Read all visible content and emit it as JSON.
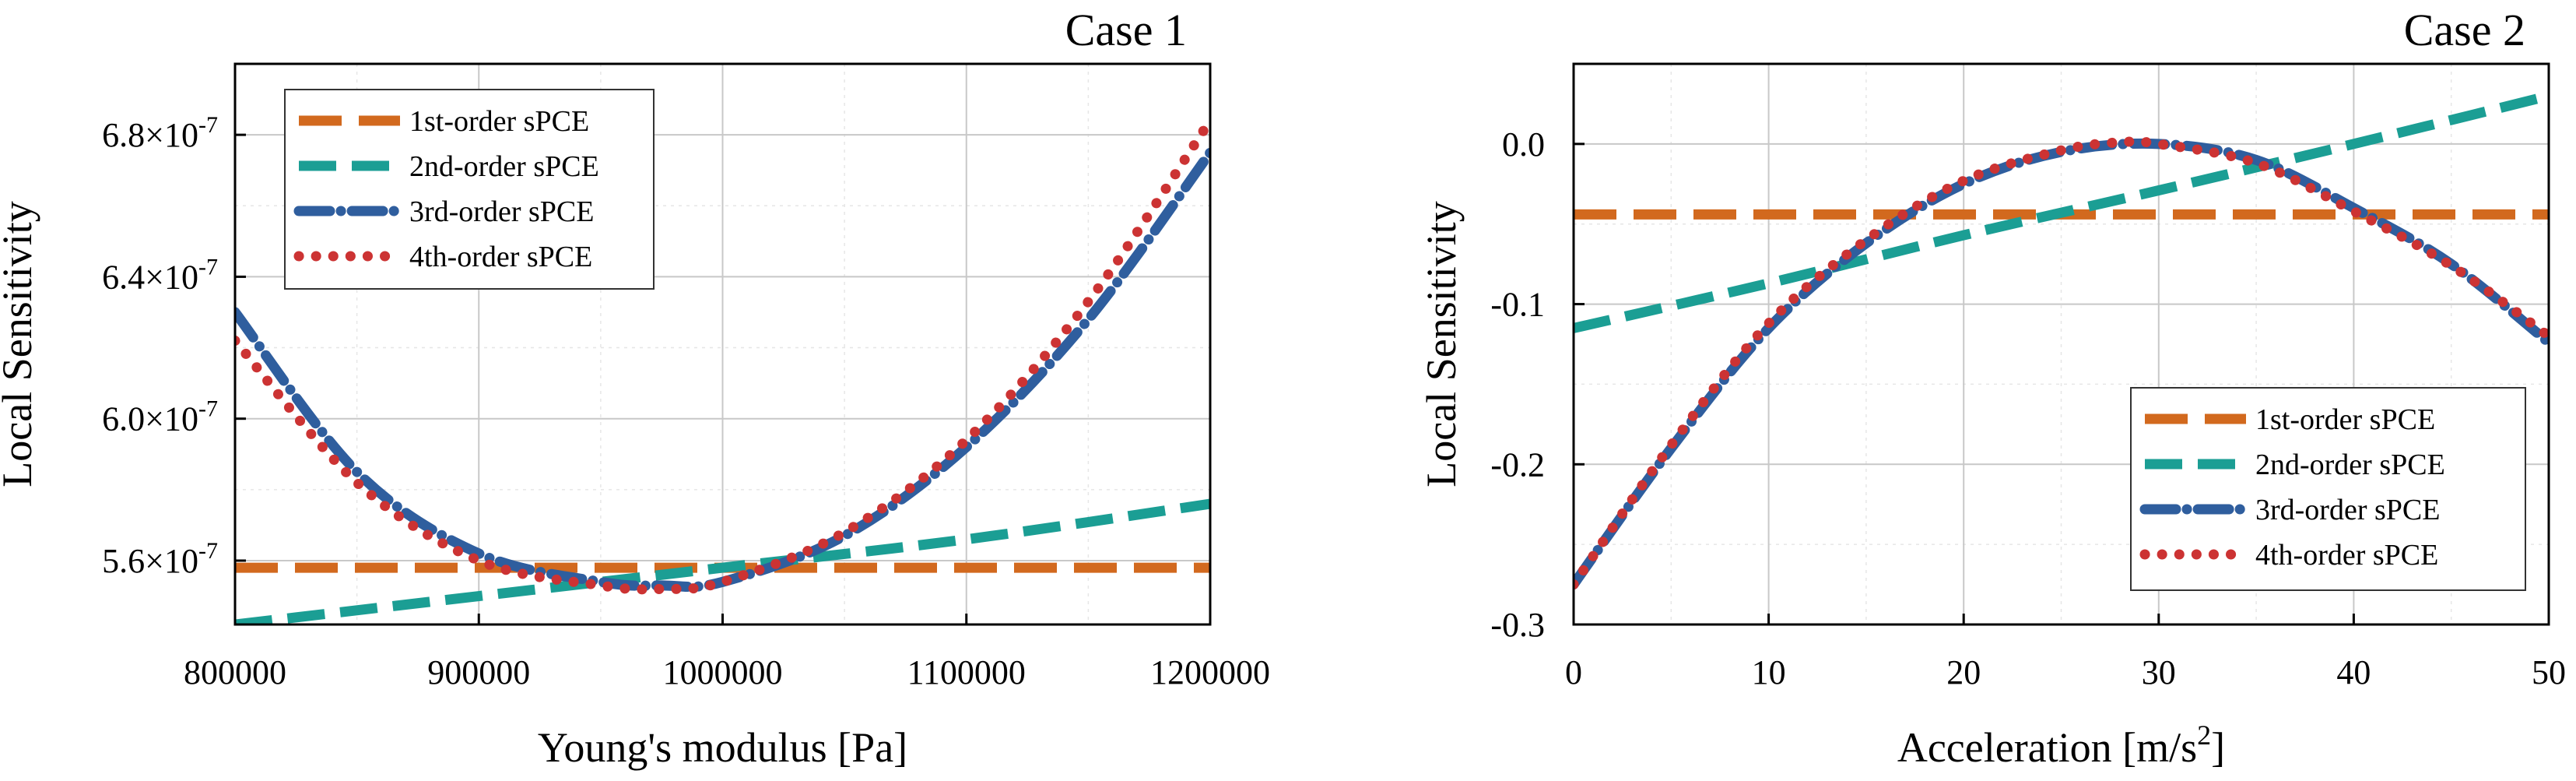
{
  "chart_data": [
    {
      "type": "line",
      "title": "Case 1",
      "xlabel": "Young's modulus [Pa]",
      "ylabel": "Local Sensitivity",
      "xlim": [
        800000,
        1200000
      ],
      "ylim": [
        5.42e-07,
        7e-07
      ],
      "xticks": [
        800000,
        900000,
        1000000,
        1100000,
        1200000
      ],
      "xtick_labels": [
        "800000",
        "900000",
        "1000000",
        "1100000",
        "1200000"
      ],
      "yticks": [
        5.6e-07,
        6e-07,
        6.4e-07,
        6.8e-07
      ],
      "ytick_labels": [
        "5.6×10",
        "6.0×10",
        "6.4×10",
        "6.8×10"
      ],
      "ytick_exponent": "-7",
      "grid": true,
      "legend_position": "top-left",
      "series": [
        {
          "name": "1st-order sPCE",
          "color": "#D2691E",
          "style": "dash",
          "x": [
            800000,
            1200000
          ],
          "y": [
            5.58e-07,
            5.58e-07
          ]
        },
        {
          "name": "2nd-order sPCE",
          "color": "#1B9E94",
          "style": "longdash",
          "x": [
            800000,
            900000,
            1000000,
            1100000,
            1200000
          ],
          "y": [
            5.42e-07,
            5.5e-07,
            5.58e-07,
            5.66e-07,
            5.76e-07
          ]
        },
        {
          "name": "3rd-order sPCE",
          "color": "#2F5E9E",
          "style": "dashdot",
          "x": [
            800000,
            850000,
            900000,
            950000,
            975000,
            1000000,
            1050000,
            1100000,
            1150000,
            1200000
          ],
          "y": [
            6.3e-07,
            5.85e-07,
            5.62e-07,
            5.54e-07,
            5.53e-07,
            5.54e-07,
            5.67e-07,
            5.92e-07,
            6.28e-07,
            6.75e-07
          ]
        },
        {
          "name": "4th-order sPCE",
          "color": "#CC3333",
          "style": "dot",
          "x": [
            800000,
            850000,
            900000,
            950000,
            975000,
            1000000,
            1050000,
            1100000,
            1150000,
            1200000
          ],
          "y": [
            6.22e-07,
            5.82e-07,
            5.6e-07,
            5.53e-07,
            5.52e-07,
            5.54e-07,
            5.68e-07,
            5.94e-07,
            6.33e-07,
            6.84e-07
          ]
        }
      ]
    },
    {
      "type": "line",
      "title": "Case 2",
      "xlabel": "Acceleration [m/s",
      "xlabel_sup": "2",
      "xlabel_end": "]",
      "ylabel": "Local Sensitivity",
      "xlim": [
        0,
        50
      ],
      "ylim": [
        -0.3,
        0.05
      ],
      "xticks": [
        0,
        10,
        20,
        30,
        40,
        50
      ],
      "xtick_labels": [
        "0",
        "10",
        "20",
        "30",
        "40",
        "50"
      ],
      "yticks": [
        -0.3,
        -0.2,
        -0.1,
        0.0
      ],
      "ytick_labels": [
        "-0.3",
        "-0.2",
        "-0.1",
        "0.0"
      ],
      "grid": true,
      "legend_position": "bottom-right",
      "series": [
        {
          "name": "1st-order sPCE",
          "color": "#D2691E",
          "style": "dash",
          "x": [
            0,
            50
          ],
          "y": [
            -0.044,
            -0.044
          ]
        },
        {
          "name": "2nd-order sPCE",
          "color": "#1B9E94",
          "style": "longdash",
          "x": [
            0,
            10,
            20,
            30,
            40,
            50
          ],
          "y": [
            -0.115,
            -0.087,
            -0.057,
            -0.029,
            0.0,
            0.03
          ]
        },
        {
          "name": "3rd-order sPCE",
          "color": "#2F5E9E",
          "style": "dashdot",
          "x": [
            0,
            5,
            10,
            15,
            20,
            25,
            30,
            35,
            40,
            45,
            50
          ],
          "y": [
            -0.275,
            -0.19,
            -0.115,
            -0.062,
            -0.025,
            -0.005,
            0.0,
            -0.01,
            -0.04,
            -0.075,
            -0.124
          ]
        },
        {
          "name": "4th-order sPCE",
          "color": "#CC3333",
          "style": "dot",
          "x": [
            0,
            5,
            10,
            15,
            20,
            25,
            28,
            30,
            35,
            40,
            45,
            50
          ],
          "y": [
            -0.275,
            -0.188,
            -0.112,
            -0.06,
            -0.023,
            -0.004,
            0.001,
            0.0,
            -0.012,
            -0.042,
            -0.076,
            -0.12
          ]
        }
      ]
    }
  ]
}
